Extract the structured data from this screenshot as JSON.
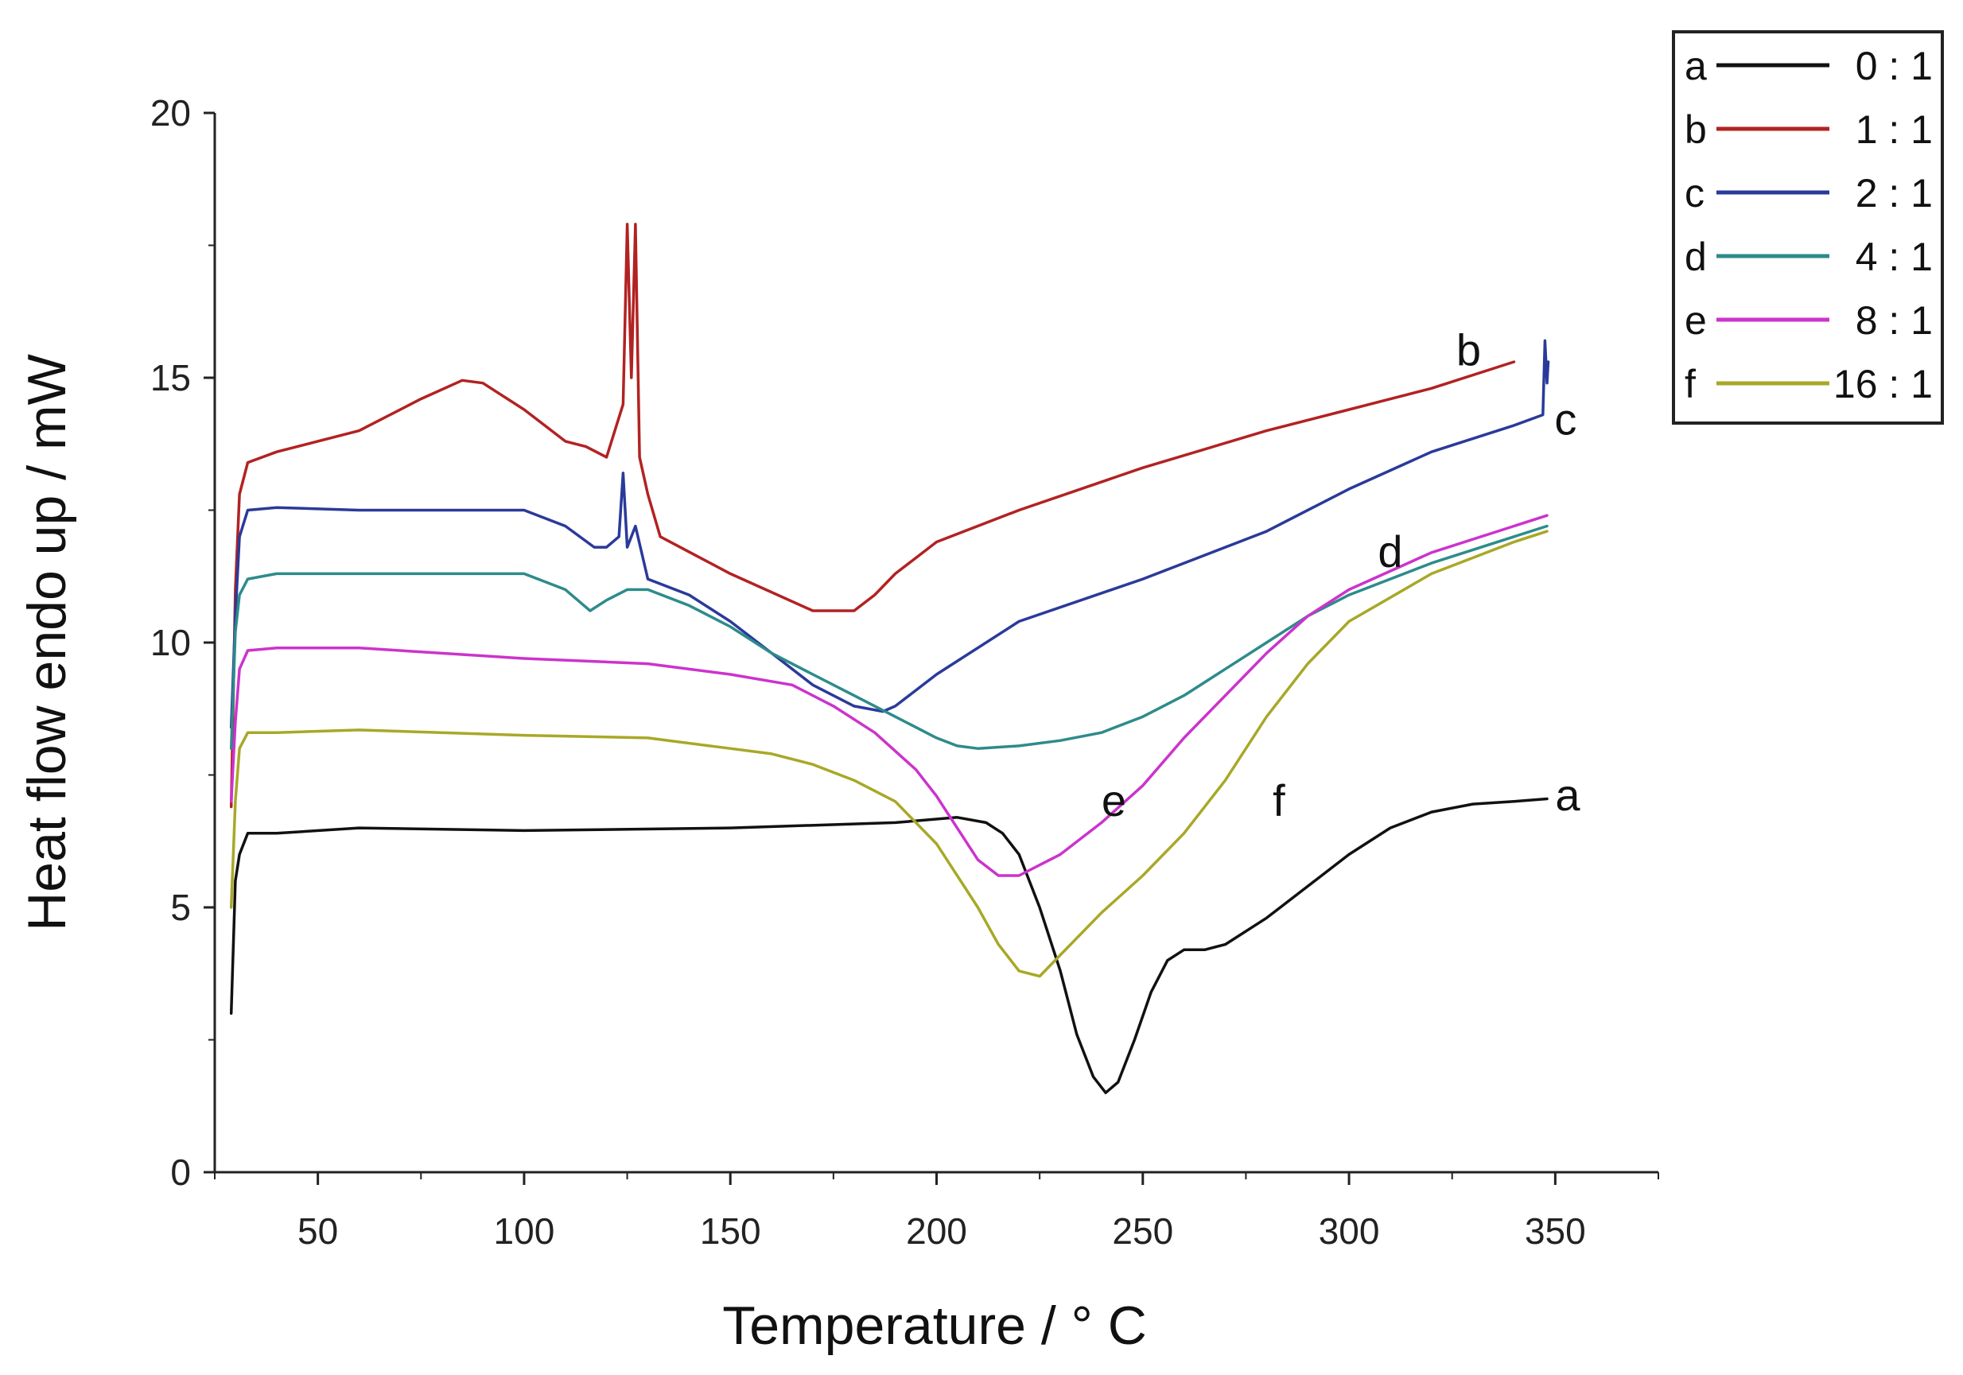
{
  "chart_data": {
    "type": "line",
    "title": "",
    "xlabel": "Temperature / ° C",
    "ylabel": "Heat flow endo up / mW",
    "xlim": [
      25,
      375
    ],
    "ylim": [
      0,
      20
    ],
    "xticks": [
      50,
      100,
      150,
      200,
      250,
      300,
      350
    ],
    "yticks": [
      0,
      5,
      10,
      15,
      20
    ],
    "legend_position": "top-right",
    "series": [
      {
        "id": "a",
        "label": "a",
        "name": "0 : 1",
        "color": "#111111",
        "x": [
          29,
          30,
          31,
          33,
          40,
          60,
          100,
          150,
          190,
          205,
          212,
          216,
          220,
          225,
          230,
          234,
          238,
          241,
          244,
          248,
          252,
          256,
          260,
          265,
          270,
          280,
          290,
          300,
          310,
          320,
          330,
          340,
          348
        ],
        "y": [
          3.0,
          5.5,
          6.0,
          6.4,
          6.4,
          6.5,
          6.45,
          6.5,
          6.6,
          6.7,
          6.6,
          6.4,
          6.0,
          5.0,
          3.8,
          2.6,
          1.8,
          1.5,
          1.7,
          2.5,
          3.4,
          4.0,
          4.2,
          4.2,
          4.3,
          4.8,
          5.4,
          6.0,
          6.5,
          6.8,
          6.95,
          7.0,
          7.05
        ]
      },
      {
        "id": "b",
        "label": "b",
        "name": "1 : 1",
        "color": "#b22222",
        "x": [
          29,
          30,
          31,
          33,
          40,
          60,
          75,
          85,
          90,
          100,
          110,
          115,
          120,
          124,
          125,
          126,
          127,
          128,
          130,
          133,
          150,
          170,
          180,
          185,
          190,
          200,
          220,
          250,
          280,
          300,
          320,
          340
        ],
        "y": [
          6.9,
          11.0,
          12.8,
          13.4,
          13.6,
          14.0,
          14.6,
          14.95,
          14.9,
          14.4,
          13.8,
          13.7,
          13.5,
          14.5,
          17.9,
          15.0,
          17.9,
          13.5,
          12.8,
          12.0,
          11.3,
          10.6,
          10.6,
          10.9,
          11.3,
          11.9,
          12.5,
          13.3,
          14.0,
          14.4,
          14.8,
          15.3
        ]
      },
      {
        "id": "c",
        "label": "c",
        "name": "2 : 1",
        "color": "#2a3a9a",
        "x": [
          29,
          30,
          31,
          33,
          40,
          60,
          100,
          110,
          117,
          120,
          123,
          124,
          125,
          127,
          130,
          140,
          150,
          160,
          170,
          180,
          187,
          190,
          200,
          220,
          250,
          280,
          300,
          320,
          340,
          347,
          347.5,
          348,
          348.3
        ],
        "y": [
          8.4,
          10.5,
          12.0,
          12.5,
          12.55,
          12.5,
          12.5,
          12.2,
          11.8,
          11.8,
          12.0,
          13.2,
          11.8,
          12.2,
          11.2,
          10.9,
          10.4,
          9.8,
          9.2,
          8.8,
          8.7,
          8.8,
          9.4,
          10.4,
          11.2,
          12.1,
          12.9,
          13.6,
          14.1,
          14.3,
          15.7,
          14.9,
          15.3
        ]
      },
      {
        "id": "d",
        "label": "d",
        "name": "4 : 1",
        "color": "#2e8b8b",
        "x": [
          29,
          30,
          31,
          33,
          40,
          60,
          100,
          110,
          116,
          120,
          125,
          130,
          140,
          150,
          160,
          170,
          180,
          190,
          200,
          205,
          210,
          220,
          230,
          240,
          250,
          260,
          270,
          280,
          290,
          300,
          320,
          340,
          348
        ],
        "y": [
          8.0,
          10.2,
          10.9,
          11.2,
          11.3,
          11.3,
          11.3,
          11.0,
          10.6,
          10.8,
          11.0,
          11.0,
          10.7,
          10.3,
          9.8,
          9.4,
          9.0,
          8.6,
          8.2,
          8.05,
          8.0,
          8.05,
          8.15,
          8.3,
          8.6,
          9.0,
          9.5,
          10.0,
          10.5,
          10.9,
          11.5,
          12.0,
          12.2
        ]
      },
      {
        "id": "e",
        "label": "e",
        "name": "8 : 1",
        "color": "#cc33cc",
        "x": [
          29,
          30,
          31,
          33,
          40,
          60,
          100,
          130,
          150,
          165,
          175,
          185,
          195,
          200,
          205,
          210,
          215,
          220,
          225,
          230,
          240,
          250,
          260,
          270,
          280,
          290,
          300,
          320,
          340,
          348
        ],
        "y": [
          7.0,
          8.5,
          9.5,
          9.85,
          9.9,
          9.9,
          9.7,
          9.6,
          9.4,
          9.2,
          8.8,
          8.3,
          7.6,
          7.1,
          6.5,
          5.9,
          5.6,
          5.6,
          5.8,
          6.0,
          6.6,
          7.3,
          8.2,
          9.0,
          9.8,
          10.5,
          11.0,
          11.7,
          12.2,
          12.4
        ]
      },
      {
        "id": "f",
        "label": "f",
        "name": "16 : 1",
        "color": "#a8a828",
        "x": [
          29,
          30,
          31,
          33,
          40,
          60,
          100,
          130,
          150,
          160,
          170,
          180,
          190,
          200,
          210,
          215,
          220,
          225,
          230,
          240,
          250,
          260,
          270,
          280,
          290,
          300,
          320,
          340,
          348
        ],
        "y": [
          5.0,
          7.0,
          8.0,
          8.3,
          8.3,
          8.35,
          8.25,
          8.2,
          8.0,
          7.9,
          7.7,
          7.4,
          7.0,
          6.2,
          5.0,
          4.3,
          3.8,
          3.7,
          4.1,
          4.9,
          5.6,
          6.4,
          7.4,
          8.6,
          9.6,
          10.4,
          11.3,
          11.9,
          12.1
        ]
      }
    ],
    "annotations": [
      {
        "series": "a",
        "text": "a",
        "x": 353,
        "y": 7.1
      },
      {
        "series": "b",
        "text": "b",
        "x": 329,
        "y": 15.5
      },
      {
        "series": "c",
        "text": "c",
        "x": 352.5,
        "y": 14.2
      },
      {
        "series": "d",
        "text": "d",
        "x": 310,
        "y": 11.7
      },
      {
        "series": "e",
        "text": "e",
        "x": 243,
        "y": 7.0
      },
      {
        "series": "f",
        "text": "f",
        "x": 283,
        "y": 7.0
      }
    ]
  }
}
